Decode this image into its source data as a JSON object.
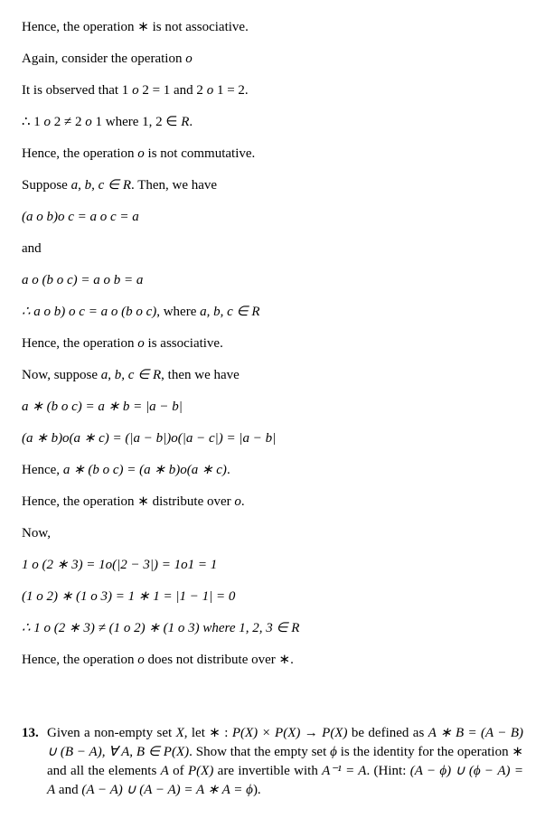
{
  "lines": {
    "l1": "Hence, the operation ∗ is not associative.",
    "l2_a": "Again, consider the operation ",
    "l2_b": "o",
    "l3_a": "It is observed that 1 ",
    "l3_b": "o",
    "l3_c": " 2 = 1 and 2 ",
    "l3_d": "o",
    "l3_e": " 1 = 2.",
    "l4_a": "∴ 1 ",
    "l4_b": "o",
    "l4_c": " 2 ≠ 2 ",
    "l4_d": "o",
    "l4_e": " 1 where 1, 2 ∈ ",
    "l4_f": "R",
    "l4_g": ".",
    "l5_a": "Hence, the operation ",
    "l5_b": "o",
    "l5_c": " is not commutative.",
    "l6_a": "Suppose ",
    "l6_b": "a, b, c ∈ R",
    "l6_c": ". Then, we have",
    "l7_a": "(a o b)o c = a o c = a",
    "l8": "and",
    "l9_a": "a o (b o c)  =  a o b = a",
    "l10_a": "∴  a o b) o c  =  a o (b o c)",
    "l10_b": ", where ",
    "l10_c": "a, b, c  ∈  R",
    "l11_a": "Hence, the operation ",
    "l11_b": "o",
    "l11_c": " is associative.",
    "l12_a": "Now, suppose ",
    "l12_b": "a, b, c ∈ R",
    "l12_c": ", then we have",
    "l13_a": "a ∗ (b o c) = a ∗ b = |a − b|",
    "l14_a": "(a  ∗  b)o(a ∗ c) = (|a − b|)o(|a − c|) = |a − b|",
    "l15_a": "Hence, ",
    "l15_b": "a ∗ (b o c) = (a ∗ b)o(a ∗ c)",
    "l15_c": ".",
    "l16_a": "Hence, the operation ∗ distribute over ",
    "l16_b": "o",
    "l16_c": ".",
    "l17": "Now,",
    "l18_a": "1 o (2 ∗ 3) = 1o(|2 − 3|) = 1o1 = 1",
    "l19_a": "(1 o 2) ∗ (1 o 3) = 1 ∗ 1 = |1 − 1| = 0",
    "l20_a": "∴  1 o (2 ∗ 3) ≠ (1 o 2) ∗ (1 o 3) where 1, 2, 3  ∈  R",
    "l21_a": "Hence, the operation ",
    "l21_b": "o",
    "l21_c": " does not distribute over ∗."
  },
  "question": {
    "num": "13.",
    "text_a": "Given a non-empty set ",
    "text_b": "X",
    "text_c": ", let ∗ : ",
    "text_d": "P(X) × P(X) → P(X)",
    "text_e": " be defined as ",
    "text_f": "A ∗ B = (A − B) ∪ (B − A), ∀ A, B ∈  P(X)",
    "text_g": ". Show that the empty set ",
    "text_h": "ϕ",
    "text_i": " is the identity for the operation ∗ and all the elements ",
    "text_j": "A",
    "text_k": " of ",
    "text_l": "P(X)",
    "text_m": " are invertible with ",
    "text_n": "A⁻¹ = A",
    "text_o": ". (Hint: ",
    "text_p": "(A − ϕ) ∪ (ϕ − A) = A",
    "text_q": " and ",
    "text_r": "(A − A) ∪ (A − A) = A ∗ A = ϕ",
    "text_s": ")."
  }
}
